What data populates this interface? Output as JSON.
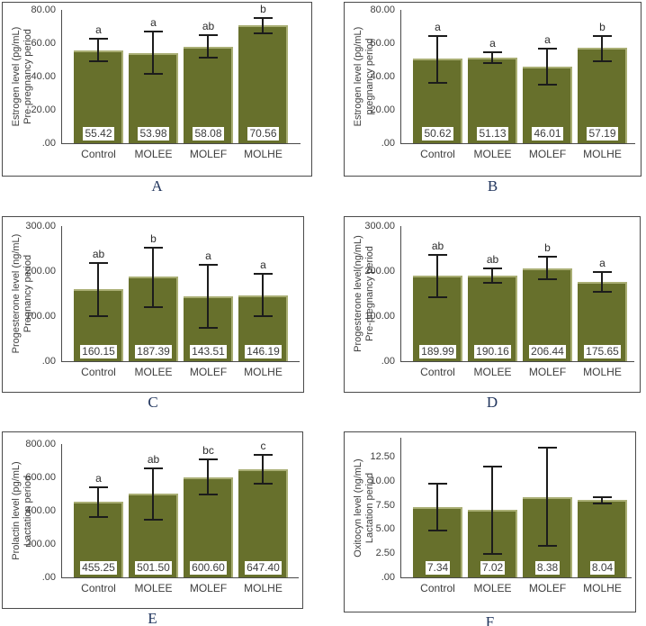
{
  "figure": {
    "description": "Six-panel bar chart figure of hormone levels across treatment groups",
    "panel_letters": [
      "A",
      "B",
      "C",
      "D",
      "E",
      "F"
    ]
  },
  "colors": {
    "bar": "#67702c",
    "bar_highlight": "#a9ae74",
    "error_bar": "#1c1c1c",
    "panel_letter": "#22365e",
    "axis_text": "#3d3d3d",
    "panel_border": "#4a4a4a",
    "value_label_bg": "#ffffff"
  },
  "chart_data": [
    {
      "type": "bar",
      "panel_label": "A",
      "ylabel": "Estrogen level (pg/mL) Pre-pregnancy period",
      "ylabel_lines": [
        "Estrogen level (pg/mL)",
        "Pre-pregnancy period"
      ],
      "categories": [
        "Control",
        "MOLEE",
        "MOLEF",
        "MOLHE"
      ],
      "values": [
        55.42,
        53.98,
        58.08,
        70.56
      ],
      "value_labels": [
        "55.42",
        "53.98",
        "58.08",
        "70.56"
      ],
      "error_low": [
        49.4,
        41.5,
        51.2,
        65.9
      ],
      "error_high": [
        63.0,
        67.5,
        65.5,
        75.5
      ],
      "sig_letters": [
        "a",
        "a",
        "ab",
        "b"
      ],
      "ylim": [
        0,
        80
      ],
      "plot_ymax": 80,
      "grid": false,
      "yticks": {
        "values": [
          80,
          60,
          40,
          20,
          0
        ],
        "labels": [
          "80.00",
          "60.00",
          "40.00",
          "20.00",
          ".00"
        ]
      }
    },
    {
      "type": "bar",
      "panel_label": "B",
      "ylabel": "Estrogen level (pg/mL) pregnancy period",
      "ylabel_lines": [
        "Estrogen level (pg/mL)",
        "pregnancy period"
      ],
      "categories": [
        "Control",
        "MOLEE",
        "MOLEF",
        "MOLHE"
      ],
      "values": [
        50.62,
        51.13,
        46.01,
        57.19
      ],
      "value_labels": [
        "50.62",
        "51.13",
        "46.01",
        "57.19"
      ],
      "error_low": [
        36.0,
        48.1,
        35.0,
        49.4
      ],
      "error_high": [
        64.7,
        55.0,
        57.5,
        64.7
      ],
      "sig_letters": [
        "a",
        "a",
        "a",
        "b"
      ],
      "ylim": [
        0,
        80
      ],
      "plot_ymax": 80,
      "grid": false,
      "yticks": {
        "values": [
          80,
          60,
          40,
          20,
          0
        ],
        "labels": [
          "80.00",
          "60.00",
          "40.00",
          "20.00",
          ".00"
        ]
      }
    },
    {
      "type": "bar",
      "panel_label": "C",
      "ylabel": "Progesterone level (ng/mL) Pregnancy period",
      "ylabel_lines": [
        "Progesterone level (ng/mL)",
        "Pregnancy period"
      ],
      "categories": [
        "Control",
        "MOLEE",
        "MOLEF",
        "MOLHE"
      ],
      "values": [
        160.15,
        187.39,
        143.51,
        146.19
      ],
      "value_labels": [
        "160.15",
        "187.39",
        "143.51",
        "146.19"
      ],
      "error_low": [
        100,
        120,
        74,
        100
      ],
      "error_high": [
        220,
        255,
        217,
        196
      ],
      "sig_letters": [
        "ab",
        "b",
        "a",
        "a"
      ],
      "ylim": [
        0,
        300
      ],
      "plot_ymax": 300,
      "grid": false,
      "yticks": {
        "values": [
          300,
          200,
          100,
          0
        ],
        "labels": [
          "300.00",
          "200.00",
          "100.00",
          ".00"
        ]
      }
    },
    {
      "type": "bar",
      "panel_label": "D",
      "ylabel": "Progesterone level(ng/mL) Pre-pregnancy period",
      "ylabel_lines": [
        "Progesterone level(ng/mL)",
        "Pre-pregnancy period"
      ],
      "categories": [
        "Control",
        "MOLEE",
        "MOLEF",
        "MOLHE"
      ],
      "values": [
        189.99,
        190.16,
        206.44,
        175.65
      ],
      "value_labels": [
        "189.99",
        "190.16",
        "206.44",
        "175.65"
      ],
      "error_low": [
        143,
        175,
        182,
        154
      ],
      "error_high": [
        239,
        208,
        234,
        201
      ],
      "sig_letters": [
        "ab",
        "ab",
        "b",
        "a"
      ],
      "ylim": [
        0,
        300
      ],
      "plot_ymax": 300,
      "grid": false,
      "yticks": {
        "values": [
          300,
          200,
          100,
          0
        ],
        "labels": [
          "300.00",
          "200.00",
          "100.00",
          ".00"
        ]
      }
    },
    {
      "type": "bar",
      "panel_label": "E",
      "ylabel": "Prolactin level (pg/mL) Lactation period",
      "ylabel_lines": [
        "Prolactin level (pg/mL)",
        "Lactation period"
      ],
      "categories": [
        "Control",
        "MOLEE",
        "MOLEF",
        "MOLHE"
      ],
      "values": [
        455.25,
        501.5,
        600.6,
        647.4
      ],
      "value_labels": [
        "455.25",
        "501.50",
        "600.60",
        "647.40"
      ],
      "error_low": [
        363,
        345,
        500,
        560
      ],
      "error_high": [
        545,
        660,
        712,
        740
      ],
      "sig_letters": [
        "a",
        "ab",
        "bc",
        "c"
      ],
      "ylim": [
        0,
        800
      ],
      "plot_ymax": 800,
      "grid": false,
      "yticks": {
        "values": [
          800,
          600,
          400,
          200,
          0
        ],
        "labels": [
          "800.00",
          "600.00",
          "400.00",
          "200.00",
          ".00"
        ]
      }
    },
    {
      "type": "bar",
      "panel_label": "F",
      "ylabel": "Oxitocyn level (ng/mL) Lactation period",
      "ylabel_lines": [
        "Oxitocyn level (ng/mL)",
        "Lactation period"
      ],
      "categories": [
        "Control",
        "MOLEE",
        "MOLEF",
        "MOLHE"
      ],
      "values": [
        7.34,
        7.02,
        8.38,
        8.04
      ],
      "value_labels": [
        "7.34",
        "7.02",
        "8.38",
        "8.04"
      ],
      "error_low": [
        4.9,
        2.45,
        3.3,
        7.7
      ],
      "error_high": [
        9.9,
        11.65,
        13.6,
        8.45
      ],
      "sig_letters": [
        "",
        "",
        "",
        ""
      ],
      "ylim": [
        0,
        12.5
      ],
      "plot_ymax": 14.55,
      "grid": false,
      "yticks": {
        "values": [
          12.5,
          10,
          7.5,
          5,
          2.5,
          0
        ],
        "labels": [
          "12.50",
          "10.00",
          "7.50",
          "5.00",
          "2.50",
          ".00"
        ]
      }
    }
  ]
}
